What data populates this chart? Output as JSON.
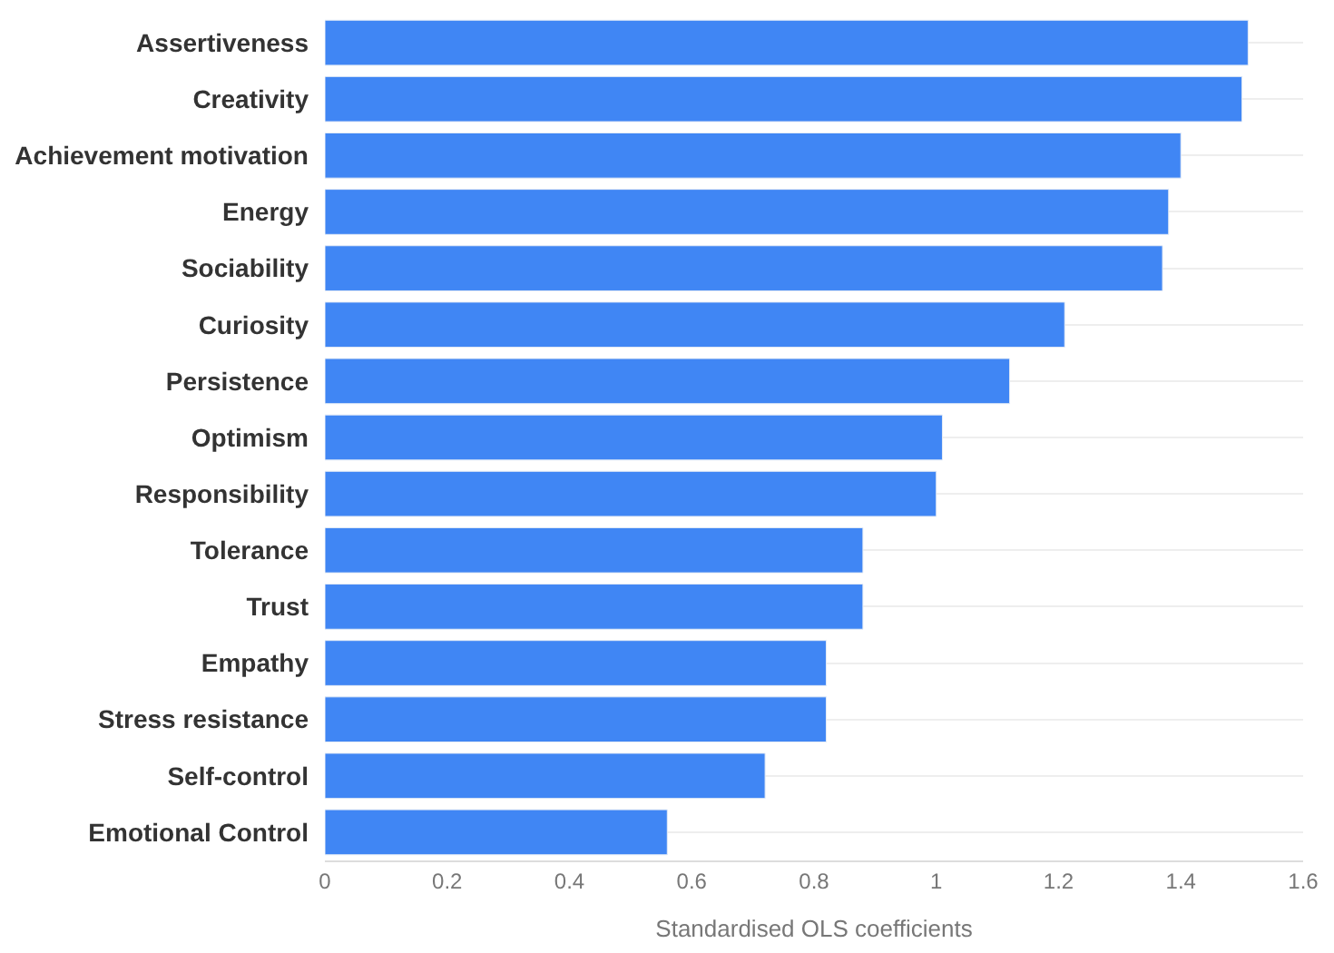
{
  "chart_data": {
    "type": "bar",
    "orientation": "horizontal",
    "xlabel": "Standardised OLS coefficients",
    "categories": [
      "Assertiveness",
      "Creativity",
      "Achievement motivation",
      "Energy",
      "Sociability",
      "Curiosity",
      "Persistence",
      "Optimism",
      "Responsibility",
      "Tolerance",
      "Trust",
      "Empathy",
      "Stress resistance",
      "Self-control",
      "Emotional Control"
    ],
    "values": [
      1.51,
      1.5,
      1.4,
      1.38,
      1.37,
      1.21,
      1.12,
      1.01,
      1.0,
      0.88,
      0.88,
      0.82,
      0.82,
      0.72,
      0.56
    ],
    "color": "#4086f4",
    "xlim": [
      0,
      1.6
    ],
    "xticks": [
      0,
      0.2,
      0.4,
      0.6,
      0.8,
      1,
      1.2,
      1.4,
      1.6
    ],
    "grid": "y"
  }
}
